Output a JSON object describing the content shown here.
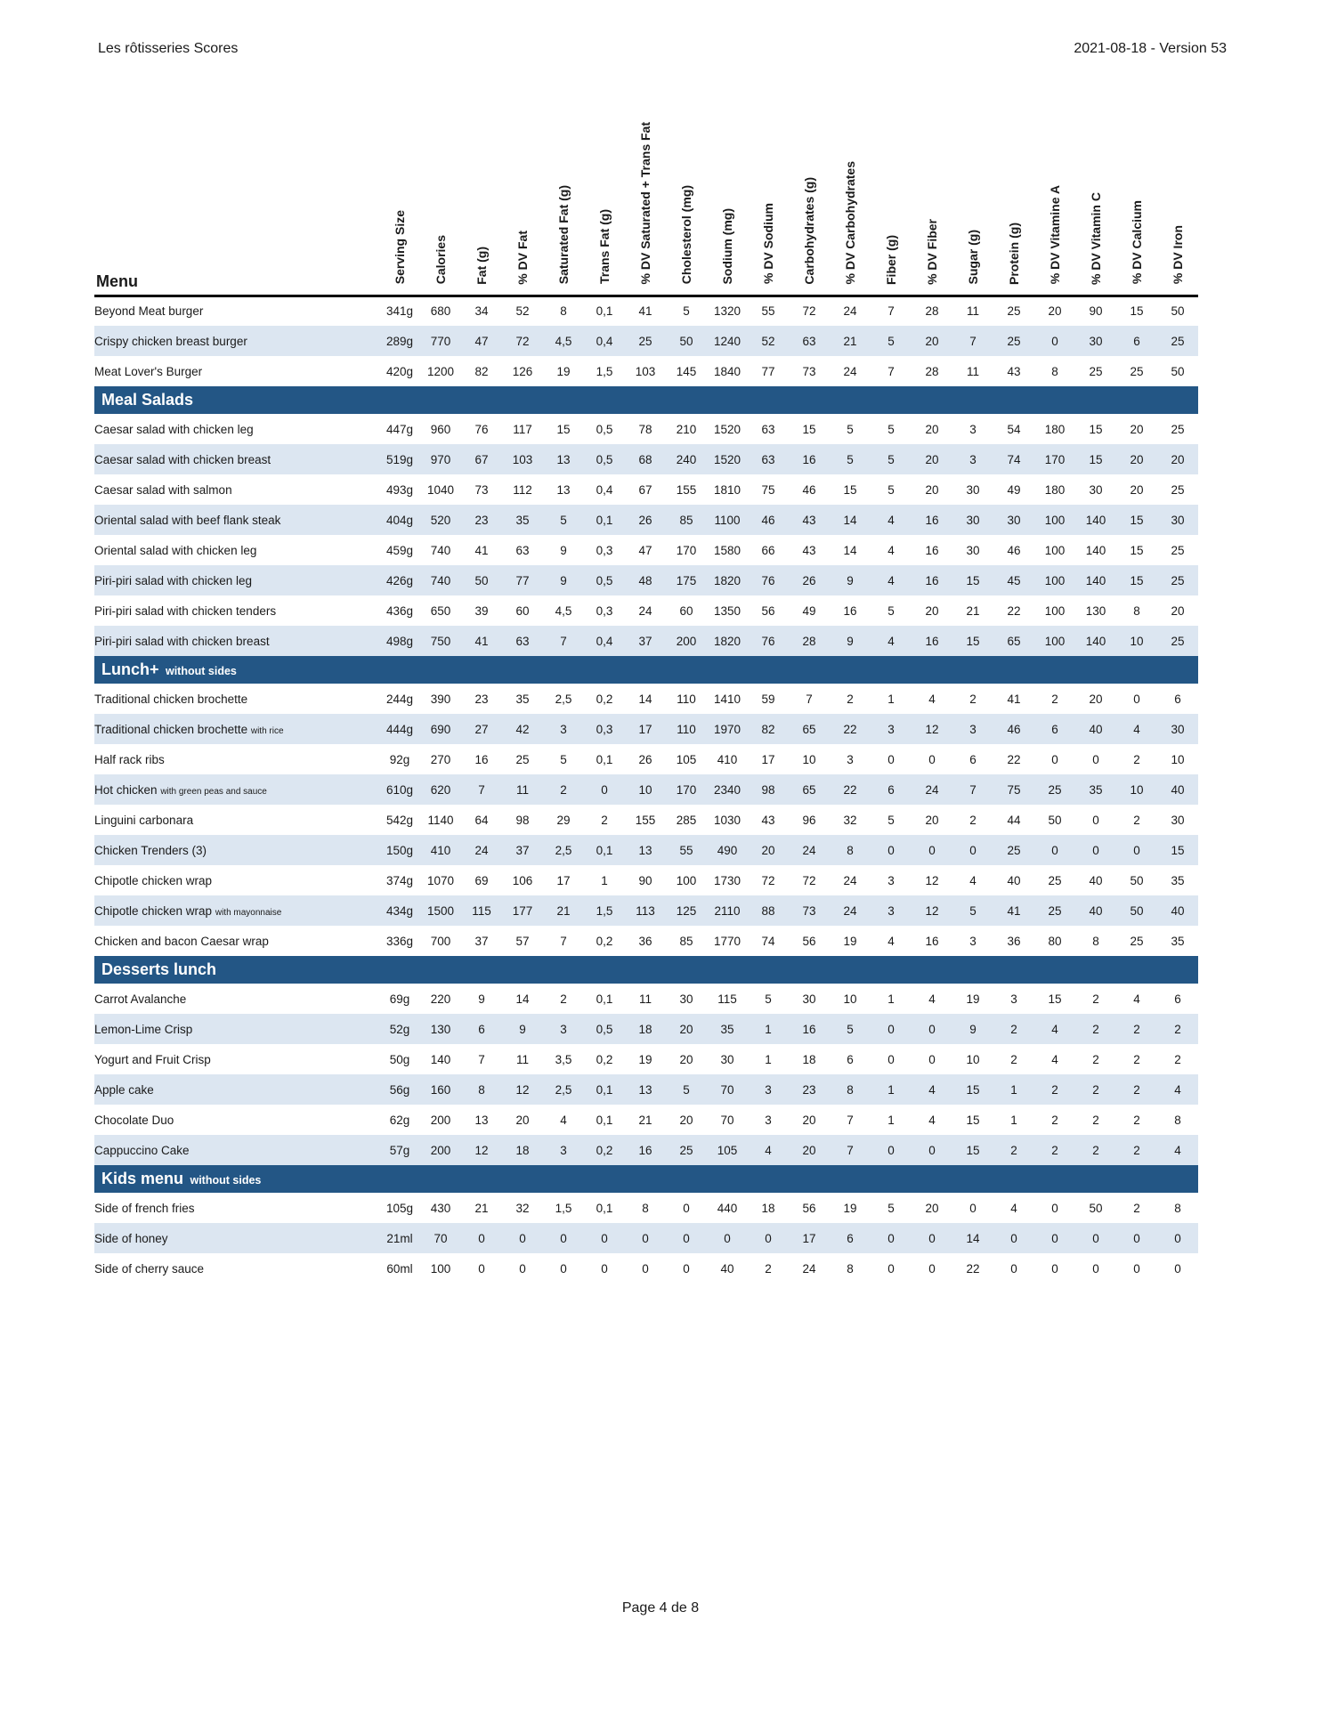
{
  "header": {
    "title": "Les rôtisseries Scores",
    "version": "2021-08-18 - Version 53"
  },
  "footer": {
    "page": "Page 4 de 8"
  },
  "colors": {
    "section_bg": "#235685",
    "row_alt_bg": "#dce6f1"
  },
  "table": {
    "menu_label": "Menu",
    "columns": [
      "Serving Size",
      "Calories",
      "Fat (g)",
      "% DV Fat",
      "Saturated Fat (g)",
      "Trans Fat (g)",
      "% DV Saturated + Trans Fat",
      "Cholesterol (mg)",
      "Sodium (mg)",
      "% DV Sodium",
      "Carbohydrates (g)",
      "% DV Carbohydrates",
      "Fiber (g)",
      "% DV Fiber",
      "Sugar (g)",
      "Protein (g)",
      "% DV Vitamine A",
      "% DV Vitamin C",
      "% DV Calcium",
      "% DV Iron"
    ],
    "sections": [
      {
        "title": "",
        "subtitle": "",
        "rows": [
          {
            "name": "Beyond Meat burger",
            "note": "",
            "values": [
              "341g",
              "680",
              "34",
              "52",
              "8",
              "0,1",
              "41",
              "5",
              "1320",
              "55",
              "72",
              "24",
              "7",
              "28",
              "11",
              "25",
              "20",
              "90",
              "15",
              "50"
            ]
          },
          {
            "name": "Crispy chicken breast burger",
            "note": "",
            "values": [
              "289g",
              "770",
              "47",
              "72",
              "4,5",
              "0,4",
              "25",
              "50",
              "1240",
              "52",
              "63",
              "21",
              "5",
              "20",
              "7",
              "25",
              "0",
              "30",
              "6",
              "25"
            ]
          },
          {
            "name": "Meat Lover's Burger",
            "note": "",
            "values": [
              "420g",
              "1200",
              "82",
              "126",
              "19",
              "1,5",
              "103",
              "145",
              "1840",
              "77",
              "73",
              "24",
              "7",
              "28",
              "11",
              "43",
              "8",
              "25",
              "25",
              "50"
            ]
          }
        ]
      },
      {
        "title": "Meal Salads",
        "subtitle": "",
        "rows": [
          {
            "name": "Caesar salad with chicken leg",
            "note": "",
            "values": [
              "447g",
              "960",
              "76",
              "117",
              "15",
              "0,5",
              "78",
              "210",
              "1520",
              "63",
              "15",
              "5",
              "5",
              "20",
              "3",
              "54",
              "180",
              "15",
              "20",
              "25"
            ]
          },
          {
            "name": "Caesar salad with chicken breast",
            "note": "",
            "values": [
              "519g",
              "970",
              "67",
              "103",
              "13",
              "0,5",
              "68",
              "240",
              "1520",
              "63",
              "16",
              "5",
              "5",
              "20",
              "3",
              "74",
              "170",
              "15",
              "20",
              "20"
            ]
          },
          {
            "name": "Caesar salad with salmon",
            "note": "",
            "values": [
              "493g",
              "1040",
              "73",
              "112",
              "13",
              "0,4",
              "67",
              "155",
              "1810",
              "75",
              "46",
              "15",
              "5",
              "20",
              "30",
              "49",
              "180",
              "30",
              "20",
              "25"
            ]
          },
          {
            "name": "Oriental salad with beef flank steak",
            "note": "",
            "values": [
              "404g",
              "520",
              "23",
              "35",
              "5",
              "0,1",
              "26",
              "85",
              "1100",
              "46",
              "43",
              "14",
              "4",
              "16",
              "30",
              "30",
              "100",
              "140",
              "15",
              "30"
            ]
          },
          {
            "name": "Oriental salad with chicken leg",
            "note": "",
            "values": [
              "459g",
              "740",
              "41",
              "63",
              "9",
              "0,3",
              "47",
              "170",
              "1580",
              "66",
              "43",
              "14",
              "4",
              "16",
              "30",
              "46",
              "100",
              "140",
              "15",
              "25"
            ]
          },
          {
            "name": "Piri-piri salad with chicken leg",
            "note": "",
            "values": [
              "426g",
              "740",
              "50",
              "77",
              "9",
              "0,5",
              "48",
              "175",
              "1820",
              "76",
              "26",
              "9",
              "4",
              "16",
              "15",
              "45",
              "100",
              "140",
              "15",
              "25"
            ]
          },
          {
            "name": "Piri-piri salad with chicken tenders",
            "note": "",
            "values": [
              "436g",
              "650",
              "39",
              "60",
              "4,5",
              "0,3",
              "24",
              "60",
              "1350",
              "56",
              "49",
              "16",
              "5",
              "20",
              "21",
              "22",
              "100",
              "130",
              "8",
              "20"
            ]
          },
          {
            "name": "Piri-piri salad with chicken breast",
            "note": "",
            "values": [
              "498g",
              "750",
              "41",
              "63",
              "7",
              "0,4",
              "37",
              "200",
              "1820",
              "76",
              "28",
              "9",
              "4",
              "16",
              "15",
              "65",
              "100",
              "140",
              "10",
              "25"
            ]
          }
        ]
      },
      {
        "title": "Lunch+",
        "subtitle": "without sides",
        "rows": [
          {
            "name": "Traditional chicken brochette",
            "note": "",
            "values": [
              "244g",
              "390",
              "23",
              "35",
              "2,5",
              "0,2",
              "14",
              "110",
              "1410",
              "59",
              "7",
              "2",
              "1",
              "4",
              "2",
              "41",
              "2",
              "20",
              "0",
              "6"
            ]
          },
          {
            "name": "Traditional chicken brochette",
            "note": "with rice",
            "values": [
              "444g",
              "690",
              "27",
              "42",
              "3",
              "0,3",
              "17",
              "110",
              "1970",
              "82",
              "65",
              "22",
              "3",
              "12",
              "3",
              "46",
              "6",
              "40",
              "4",
              "30"
            ]
          },
          {
            "name": "Half rack ribs",
            "note": "",
            "values": [
              "92g",
              "270",
              "16",
              "25",
              "5",
              "0,1",
              "26",
              "105",
              "410",
              "17",
              "10",
              "3",
              "0",
              "0",
              "6",
              "22",
              "0",
              "0",
              "2",
              "10"
            ]
          },
          {
            "name": "Hot chicken",
            "note": "with green peas and sauce",
            "values": [
              "610g",
              "620",
              "7",
              "11",
              "2",
              "0",
              "10",
              "170",
              "2340",
              "98",
              "65",
              "22",
              "6",
              "24",
              "7",
              "75",
              "25",
              "35",
              "10",
              "40"
            ]
          },
          {
            "name": "Linguini carbonara",
            "note": "",
            "values": [
              "542g",
              "1140",
              "64",
              "98",
              "29",
              "2",
              "155",
              "285",
              "1030",
              "43",
              "96",
              "32",
              "5",
              "20",
              "2",
              "44",
              "50",
              "0",
              "2",
              "30"
            ]
          },
          {
            "name": "Chicken Trenders (3)",
            "note": "",
            "values": [
              "150g",
              "410",
              "24",
              "37",
              "2,5",
              "0,1",
              "13",
              "55",
              "490",
              "20",
              "24",
              "8",
              "0",
              "0",
              "0",
              "25",
              "0",
              "0",
              "0",
              "15"
            ]
          },
          {
            "name": "Chipotle chicken wrap",
            "note": "",
            "values": [
              "374g",
              "1070",
              "69",
              "106",
              "17",
              "1",
              "90",
              "100",
              "1730",
              "72",
              "72",
              "24",
              "3",
              "12",
              "4",
              "40",
              "25",
              "40",
              "50",
              "35"
            ]
          },
          {
            "name": "Chipotle chicken wrap",
            "note": "with mayonnaise",
            "values": [
              "434g",
              "1500",
              "115",
              "177",
              "21",
              "1,5",
              "113",
              "125",
              "2110",
              "88",
              "73",
              "24",
              "3",
              "12",
              "5",
              "41",
              "25",
              "40",
              "50",
              "40"
            ]
          },
          {
            "name": "Chicken and bacon Caesar wrap",
            "note": "",
            "values": [
              "336g",
              "700",
              "37",
              "57",
              "7",
              "0,2",
              "36",
              "85",
              "1770",
              "74",
              "56",
              "19",
              "4",
              "16",
              "3",
              "36",
              "80",
              "8",
              "25",
              "35"
            ]
          }
        ]
      },
      {
        "title": "Desserts lunch",
        "subtitle": "",
        "rows": [
          {
            "name": "Carrot Avalanche",
            "note": "",
            "values": [
              "69g",
              "220",
              "9",
              "14",
              "2",
              "0,1",
              "11",
              "30",
              "115",
              "5",
              "30",
              "10",
              "1",
              "4",
              "19",
              "3",
              "15",
              "2",
              "4",
              "6"
            ]
          },
          {
            "name": "Lemon-Lime Crisp",
            "note": "",
            "values": [
              "52g",
              "130",
              "6",
              "9",
              "3",
              "0,5",
              "18",
              "20",
              "35",
              "1",
              "16",
              "5",
              "0",
              "0",
              "9",
              "2",
              "4",
              "2",
              "2",
              "2"
            ]
          },
          {
            "name": "Yogurt and Fruit Crisp",
            "note": "",
            "values": [
              "50g",
              "140",
              "7",
              "11",
              "3,5",
              "0,2",
              "19",
              "20",
              "30",
              "1",
              "18",
              "6",
              "0",
              "0",
              "10",
              "2",
              "4",
              "2",
              "2",
              "2"
            ]
          },
          {
            "name": "Apple cake",
            "note": "",
            "values": [
              "56g",
              "160",
              "8",
              "12",
              "2,5",
              "0,1",
              "13",
              "5",
              "70",
              "3",
              "23",
              "8",
              "1",
              "4",
              "15",
              "1",
              "2",
              "2",
              "2",
              "4"
            ]
          },
          {
            "name": "Chocolate Duo",
            "note": "",
            "values": [
              "62g",
              "200",
              "13",
              "20",
              "4",
              "0,1",
              "21",
              "20",
              "70",
              "3",
              "20",
              "7",
              "1",
              "4",
              "15",
              "1",
              "2",
              "2",
              "2",
              "8"
            ]
          },
          {
            "name": "Cappuccino Cake",
            "note": "",
            "values": [
              "57g",
              "200",
              "12",
              "18",
              "3",
              "0,2",
              "16",
              "25",
              "105",
              "4",
              "20",
              "7",
              "0",
              "0",
              "15",
              "2",
              "2",
              "2",
              "2",
              "4"
            ]
          }
        ]
      },
      {
        "title": "Kids menu",
        "subtitle": "without sides",
        "rows": [
          {
            "name": "Side of french fries",
            "note": "",
            "values": [
              "105g",
              "430",
              "21",
              "32",
              "1,5",
              "0,1",
              "8",
              "0",
              "440",
              "18",
              "56",
              "19",
              "5",
              "20",
              "0",
              "4",
              "0",
              "50",
              "2",
              "8"
            ]
          },
          {
            "name": "Side of honey",
            "note": "",
            "values": [
              "21ml",
              "70",
              "0",
              "0",
              "0",
              "0",
              "0",
              "0",
              "0",
              "0",
              "17",
              "6",
              "0",
              "0",
              "14",
              "0",
              "0",
              "0",
              "0",
              "0"
            ]
          },
          {
            "name": "Side of cherry sauce",
            "note": "",
            "values": [
              "60ml",
              "100",
              "0",
              "0",
              "0",
              "0",
              "0",
              "0",
              "40",
              "2",
              "24",
              "8",
              "0",
              "0",
              "22",
              "0",
              "0",
              "0",
              "0",
              "0"
            ]
          }
        ]
      }
    ]
  }
}
